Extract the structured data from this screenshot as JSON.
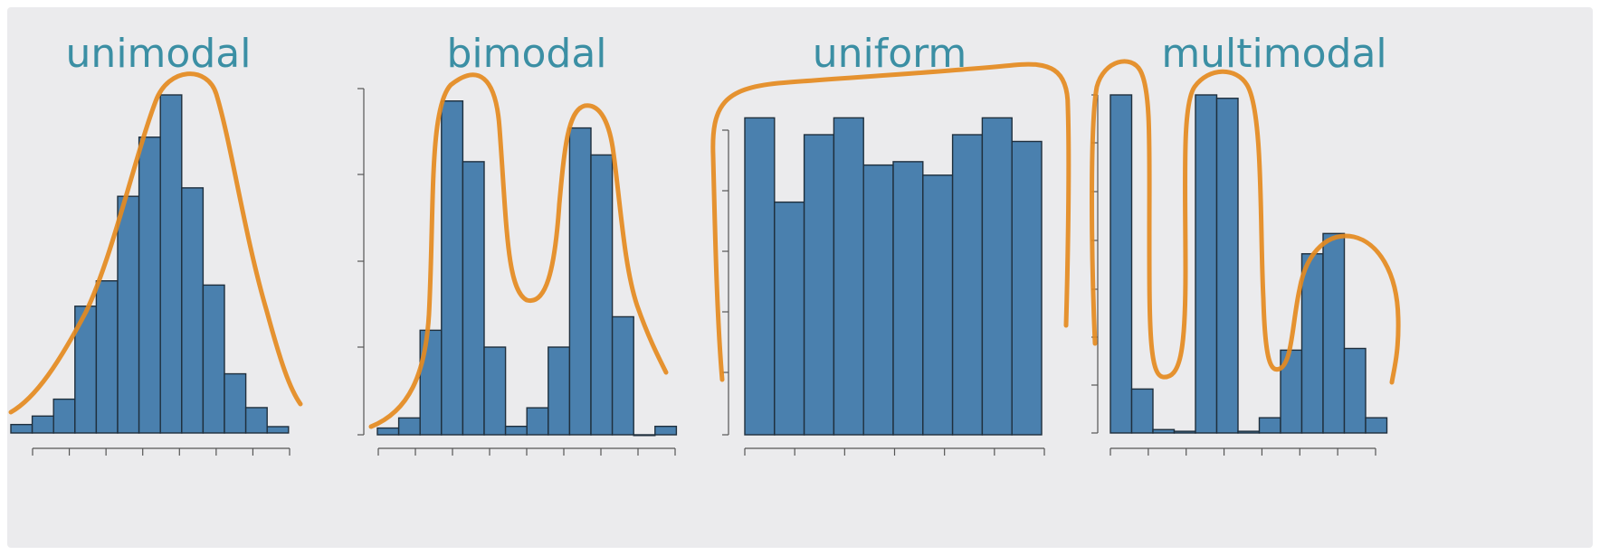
{
  "colors": {
    "bar": "#4a80ae",
    "bar_edge": "#1f2f3d",
    "title": "#3b8fa4",
    "curve": "#e48a1f",
    "background": "#ebebed"
  },
  "chart_data": [
    {
      "type": "bar",
      "title": "unimodal",
      "values": [
        2,
        4,
        8,
        30,
        36,
        56,
        70,
        80,
        58,
        35,
        14,
        6,
        1.5
      ],
      "ylim": [
        0,
        80
      ],
      "grid": false,
      "annotation": "curve-overlay"
    },
    {
      "type": "bar",
      "title": "bimodal",
      "values": [
        2,
        5,
        31,
        99,
        81,
        26,
        2.5,
        8,
        26,
        91,
        83,
        35,
        0,
        2.5
      ],
      "ylim": [
        0,
        100
      ],
      "grid": false,
      "annotation": "curve-overlay"
    },
    {
      "type": "bar",
      "title": "uniform",
      "values": [
        94,
        69,
        89,
        94,
        80,
        81,
        77,
        89,
        94,
        87
      ],
      "ylim": [
        0,
        100
      ],
      "grid": false,
      "annotation": "curve-overlay"
    },
    {
      "type": "bar",
      "title": "multimodal",
      "values": [
        100,
        13,
        1,
        0.5,
        100,
        99,
        0.5,
        4.5,
        24.5,
        53,
        59,
        25,
        4.5
      ],
      "ylim": [
        0,
        100
      ],
      "grid": false,
      "annotation": "curve-overlay"
    }
  ]
}
